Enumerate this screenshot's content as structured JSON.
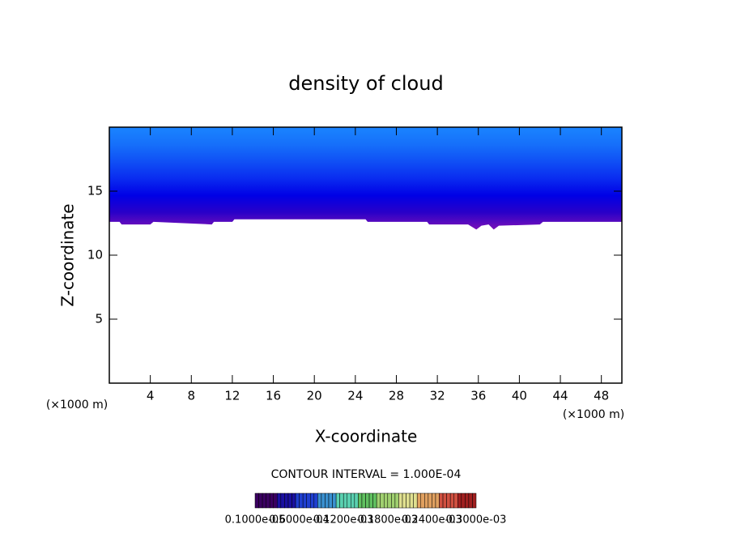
{
  "chart_data": {
    "type": "contour",
    "title": "density of cloud",
    "x_label": "X-coordinate",
    "y_label": "Z-coordinate",
    "x_unit_label": "(×1000 m)",
    "contour_interval": "CONTOUR INTERVAL = 1.000E-04",
    "xlim": [
      0,
      50
    ],
    "ylim": [
      0,
      20
    ],
    "xticks": [
      4,
      8,
      12,
      16,
      20,
      24,
      28,
      32,
      36,
      40,
      44,
      48
    ],
    "yticks": [
      5,
      10,
      15
    ],
    "x": [
      0,
      1,
      1.2,
      4,
      4.3,
      10,
      10.2,
      12,
      12.2,
      25,
      25.2,
      31,
      31.2,
      35,
      35.8,
      36.3,
      37,
      37.5,
      38,
      42,
      42.3,
      50
    ],
    "cloud_base": [
      12.6,
      12.6,
      12.4,
      12.4,
      12.6,
      12.4,
      12.6,
      12.6,
      12.8,
      12.8,
      12.6,
      12.6,
      12.4,
      12.4,
      12.0,
      12.3,
      12.4,
      12.0,
      12.3,
      12.4,
      12.6,
      12.6
    ],
    "fill_colors": [
      "#7a12b8",
      "#2a00c8",
      "#0000e6",
      "#0a2cf0",
      "#1050f5",
      "#1670fa",
      "#1a84ff"
    ],
    "colorbar_colors": [
      "#3a0060",
      "#1a10a0",
      "#1f3fd0",
      "#3a90d0",
      "#5ad0b0",
      "#60c060",
      "#a0d070",
      "#e0e090",
      "#e0a060",
      "#d05040",
      "#a02020"
    ],
    "colorbar_labels": [
      "0.1000e-05",
      "0.6000e-04",
      "0.1200e-03",
      "0.1800e-03",
      "0.2400e-03",
      "0.3000e-03"
    ]
  }
}
